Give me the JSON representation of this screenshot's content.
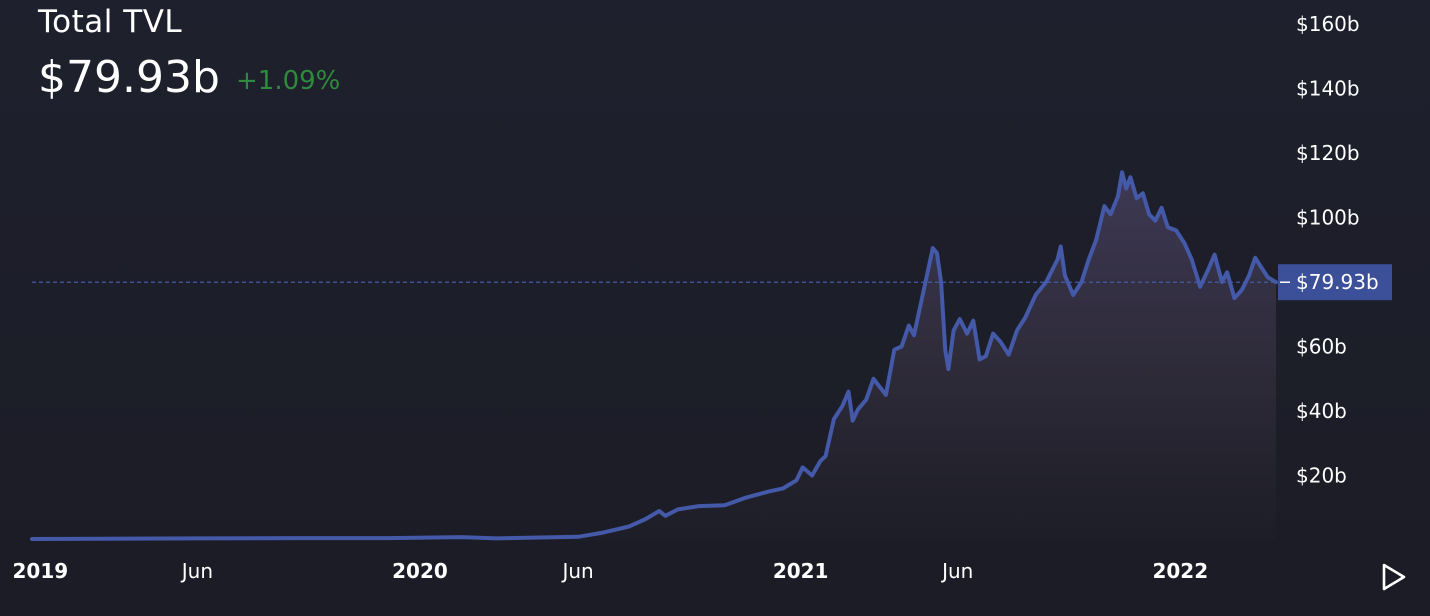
{
  "header": {
    "title": "Total TVL",
    "value": "$79.93b",
    "change": "+1.09%"
  },
  "colors": {
    "background": "#1d1f2b",
    "line": "#4459a8",
    "marker_bg": "#3c4f99",
    "change_positive": "#2e8b3e",
    "text": "#ffffff"
  },
  "controls": {
    "play_icon": "play-icon"
  },
  "chart_data": {
    "type": "area",
    "title": "Total TVL",
    "xlabel": "",
    "ylabel": "",
    "grid": false,
    "ylim": [
      0,
      160
    ],
    "y_unit": "$b",
    "y_ticks": [
      {
        "value": 20,
        "label": "$20b"
      },
      {
        "value": 40,
        "label": "$40b"
      },
      {
        "value": 60,
        "label": "$60b"
      },
      {
        "value": 80,
        "label": "$80b"
      },
      {
        "value": 100,
        "label": "$100b"
      },
      {
        "value": 120,
        "label": "$120b"
      },
      {
        "value": 140,
        "label": "$140b"
      },
      {
        "value": 160,
        "label": "$160b"
      }
    ],
    "x_ticks": [
      {
        "date": "2019-01-01",
        "label": "2019",
        "major": true
      },
      {
        "date": "2019-06-01",
        "label": "Jun",
        "major": false
      },
      {
        "date": "2020-01-01",
        "label": "2020",
        "major": true
      },
      {
        "date": "2020-06-01",
        "label": "Jun",
        "major": false
      },
      {
        "date": "2021-01-01",
        "label": "2021",
        "major": true
      },
      {
        "date": "2021-06-01",
        "label": "Jun",
        "major": false
      },
      {
        "date": "2022-01-01",
        "label": "2022",
        "major": true
      }
    ],
    "xlim": [
      "2018-12-24",
      "2022-04-03"
    ],
    "current": {
      "value": 79.93,
      "label": "$79.93b"
    },
    "series": [
      {
        "points": [
          [
            "2018-12-24",
            0.3
          ],
          [
            "2019-03-01",
            0.4
          ],
          [
            "2019-06-01",
            0.5
          ],
          [
            "2019-09-01",
            0.6
          ],
          [
            "2019-12-01",
            0.6
          ],
          [
            "2020-02-10",
            0.9
          ],
          [
            "2020-03-15",
            0.5
          ],
          [
            "2020-06-01",
            1.0
          ],
          [
            "2020-06-25",
            2.3
          ],
          [
            "2020-07-20",
            4.2
          ],
          [
            "2020-08-05",
            6.5
          ],
          [
            "2020-08-18",
            9.0
          ],
          [
            "2020-08-24",
            7.5
          ],
          [
            "2020-09-05",
            9.5
          ],
          [
            "2020-09-25",
            10.5
          ],
          [
            "2020-10-20",
            10.8
          ],
          [
            "2020-11-10",
            13.2
          ],
          [
            "2020-12-01",
            15.0
          ],
          [
            "2020-12-15",
            16.0
          ],
          [
            "2020-12-28",
            18.5
          ],
          [
            "2021-01-03",
            22.5
          ],
          [
            "2021-01-12",
            20.0
          ],
          [
            "2021-01-20",
            24.5
          ],
          [
            "2021-01-25",
            26.0
          ],
          [
            "2021-02-02",
            37.5
          ],
          [
            "2021-02-10",
            41.5
          ],
          [
            "2021-02-16",
            46.0
          ],
          [
            "2021-02-20",
            37.0
          ],
          [
            "2021-02-25",
            40.5
          ],
          [
            "2021-03-05",
            43.5
          ],
          [
            "2021-03-12",
            50.0
          ],
          [
            "2021-03-18",
            47.5
          ],
          [
            "2021-03-24",
            45.0
          ],
          [
            "2021-04-01",
            59.0
          ],
          [
            "2021-04-08",
            60.0
          ],
          [
            "2021-04-15",
            66.5
          ],
          [
            "2021-04-20",
            63.5
          ],
          [
            "2021-04-25",
            71.0
          ],
          [
            "2021-05-01",
            80.0
          ],
          [
            "2021-05-08",
            90.5
          ],
          [
            "2021-05-12",
            89.0
          ],
          [
            "2021-05-16",
            80.0
          ],
          [
            "2021-05-20",
            59.0
          ],
          [
            "2021-05-23",
            53.0
          ],
          [
            "2021-05-28",
            65.0
          ],
          [
            "2021-06-03",
            68.5
          ],
          [
            "2021-06-10",
            64.0
          ],
          [
            "2021-06-16",
            68.0
          ],
          [
            "2021-06-22",
            56.0
          ],
          [
            "2021-06-28",
            57.0
          ],
          [
            "2021-07-05",
            64.0
          ],
          [
            "2021-07-12",
            61.5
          ],
          [
            "2021-07-20",
            57.5
          ],
          [
            "2021-07-28",
            65.0
          ],
          [
            "2021-08-05",
            69.0
          ],
          [
            "2021-08-15",
            76.0
          ],
          [
            "2021-08-25",
            80.0
          ],
          [
            "2021-09-05",
            87.0
          ],
          [
            "2021-09-08",
            91.0
          ],
          [
            "2021-09-12",
            82.0
          ],
          [
            "2021-09-20",
            76.0
          ],
          [
            "2021-09-28",
            80.0
          ],
          [
            "2021-10-05",
            87.0
          ],
          [
            "2021-10-12",
            93.0
          ],
          [
            "2021-10-20",
            103.5
          ],
          [
            "2021-10-26",
            101.0
          ],
          [
            "2021-11-02",
            106.5
          ],
          [
            "2021-11-06",
            114.0
          ],
          [
            "2021-11-10",
            109.0
          ],
          [
            "2021-11-14",
            112.5
          ],
          [
            "2021-11-20",
            106.0
          ],
          [
            "2021-11-26",
            107.5
          ],
          [
            "2021-12-02",
            101.0
          ],
          [
            "2021-12-08",
            99.0
          ],
          [
            "2021-12-14",
            103.0
          ],
          [
            "2021-12-20",
            97.0
          ],
          [
            "2021-12-28",
            96.0
          ],
          [
            "2022-01-05",
            92.0
          ],
          [
            "2022-01-12",
            87.0
          ],
          [
            "2022-01-20",
            78.5
          ],
          [
            "2022-01-28",
            84.0
          ],
          [
            "2022-02-03",
            88.5
          ],
          [
            "2022-02-10",
            80.0
          ],
          [
            "2022-02-15",
            83.0
          ],
          [
            "2022-02-22",
            75.0
          ],
          [
            "2022-03-01",
            77.5
          ],
          [
            "2022-03-08",
            82.0
          ],
          [
            "2022-03-14",
            87.5
          ],
          [
            "2022-03-20",
            84.5
          ],
          [
            "2022-03-26",
            81.5
          ],
          [
            "2022-04-03",
            79.93
          ]
        ]
      }
    ]
  }
}
